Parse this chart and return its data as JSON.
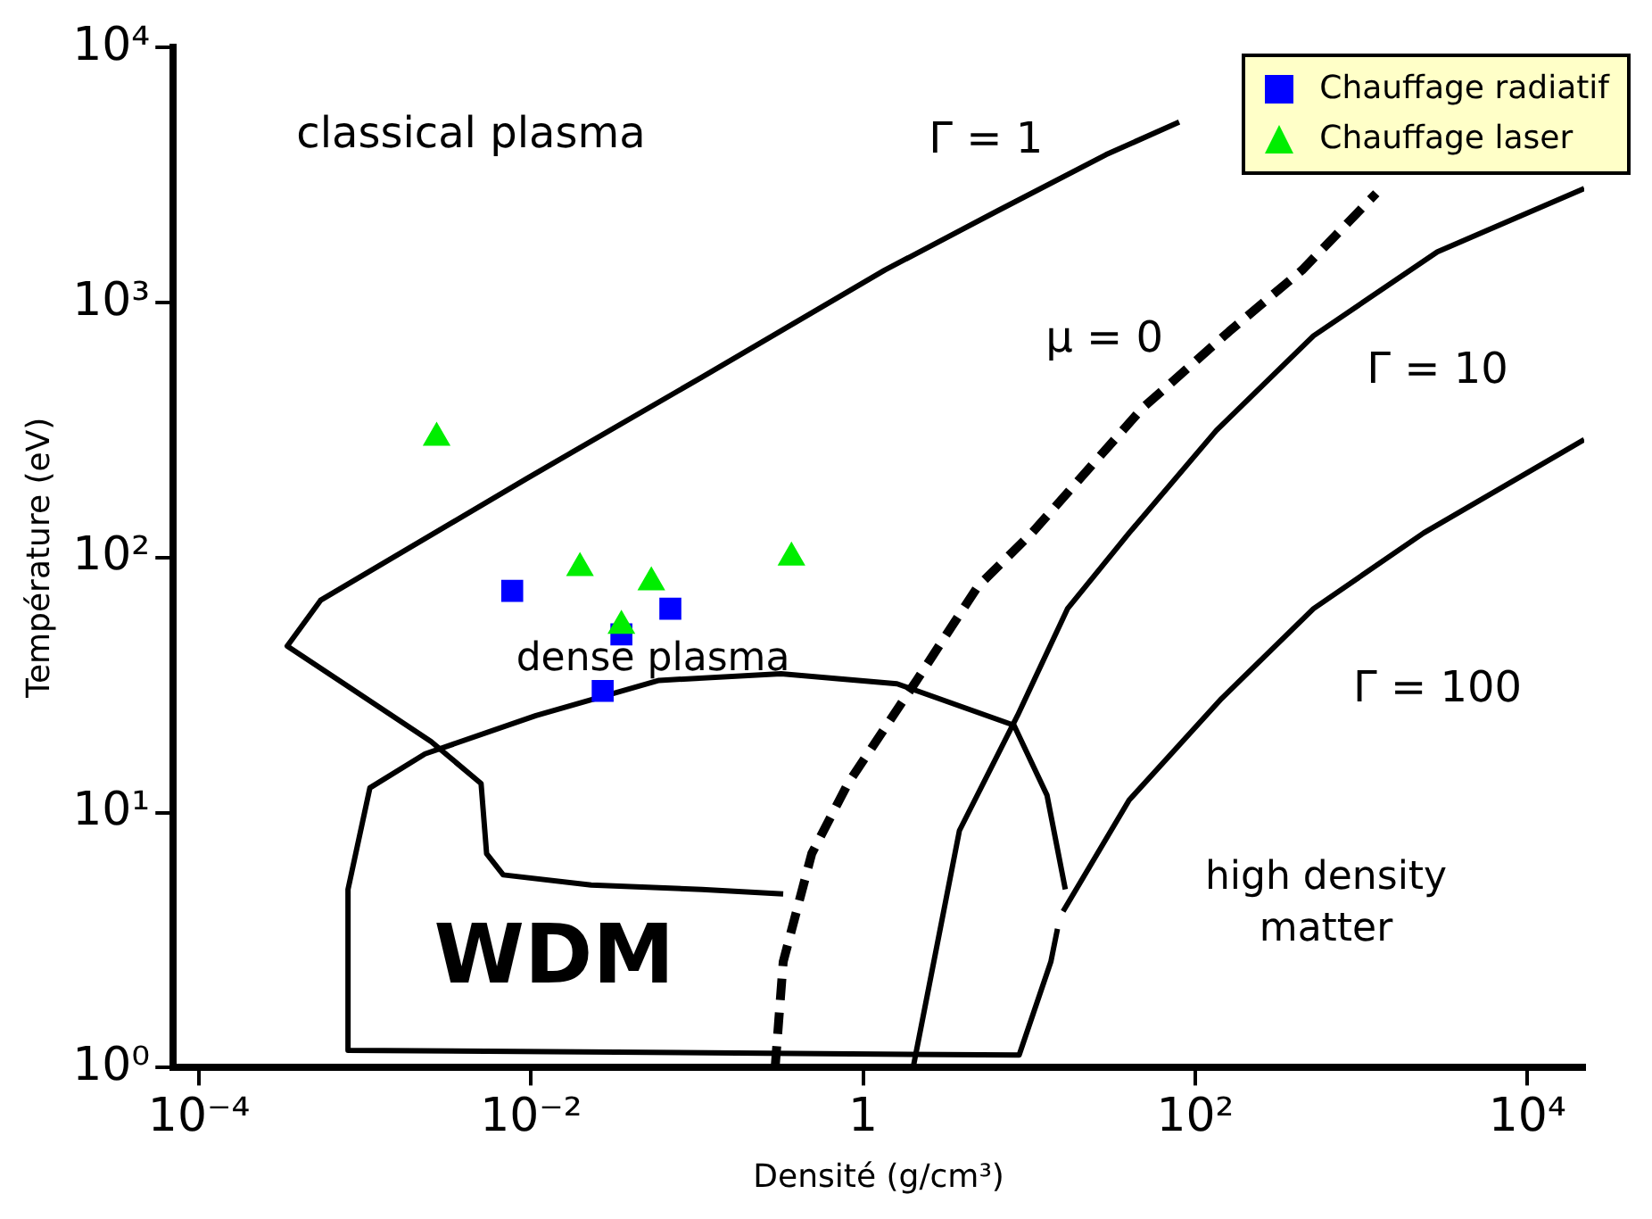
{
  "chart_data": {
    "type": "scatter",
    "xlabel": "Densité (g/cm³)",
    "ylabel": "Température (eV)",
    "log": "xy",
    "grid": false,
    "legend": "top right",
    "xlim": [
      7e-05,
      22000
    ],
    "ylim": [
      1,
      10000
    ],
    "xticks": [
      {
        "value": 0.0001,
        "label": "10⁻⁴"
      },
      {
        "value": 0.01,
        "label": "10⁻²"
      },
      1,
      {
        "value": 100,
        "label": "10²"
      },
      {
        "value": 10000,
        "label": "10⁴"
      }
    ],
    "yticks": [
      {
        "value": 1,
        "label": "10⁰"
      },
      {
        "value": 10,
        "label": "10¹"
      },
      {
        "value": 100,
        "label": "10²"
      },
      {
        "value": 1000,
        "label": "10³"
      },
      {
        "value": 10000,
        "label": "10⁴"
      }
    ],
    "series": [
      {
        "type": "line",
        "color": "#000000",
        "marker": "none",
        "line_style": "solid",
        "x": [
          0.33,
          0.107,
          0.023,
          0.0068,
          0.0054,
          0.005,
          0.0025,
          0.00034,
          0.00054,
          0.0094,
          0.107,
          1.35,
          6.3,
          29,
          80
        ],
        "values": [
          4.8,
          5.0,
          5.2,
          5.7,
          6.9,
          13,
          19,
          45,
          68,
          204,
          510,
          1340,
          2270,
          3800,
          5100
        ]
      },
      {
        "type": "line",
        "color": "#000000",
        "marker": "none",
        "line_style": "dashed",
        "x": [
          0.295,
          0.33,
          0.49,
          0.81,
          2.1,
          4.9,
          10.4,
          48,
          160,
          440,
          1230
        ],
        "values": [
          1,
          2.6,
          6.9,
          13,
          33,
          77,
          125,
          385,
          770,
          1340,
          2680
        ]
      },
      {
        "type": "line",
        "color": "#000000",
        "marker": "none",
        "line_style": "solid",
        "x": [
          2.0,
          3.8,
          8.5,
          17,
          40,
          134,
          515,
          2870,
          22000
        ],
        "values": [
          1,
          8.5,
          24,
          63,
          125,
          315,
          740,
          1580,
          2800
        ]
      },
      {
        "type": "line",
        "color": "#000000",
        "marker": "none",
        "line_style": "solid",
        "x": [
          16,
          40,
          144,
          515,
          2380,
          22000
        ],
        "values": [
          4.1,
          11.2,
          28,
          63,
          125,
          290
        ]
      },
      {
        "type": "line",
        "color": "#000000",
        "marker": "none",
        "line_style": "solid",
        "x": [
          14.8,
          13.5,
          8.7,
          0.00079,
          0.00079,
          0.00107,
          0.0023,
          0.0107,
          0.059,
          0.32,
          1.6,
          8.1,
          12.8,
          16.5
        ],
        "values": [
          3.5,
          2.6,
          1.12,
          1.17,
          5.0,
          12.5,
          17,
          24,
          33,
          35,
          32,
          22,
          11.7,
          5.0
        ]
      },
      {
        "name": "Chauffage radiatif",
        "color": "#0000ff",
        "marker": "square",
        "x": [
          0.0077,
          0.027,
          0.035,
          0.069
        ],
        "values": [
          74,
          30,
          50,
          63
        ]
      },
      {
        "name": "Chauffage laser",
        "color": "#00ee00",
        "marker": "triangle",
        "x": [
          0.0027,
          0.0197,
          0.035,
          0.053,
          0.37
        ],
        "values": [
          295,
          91,
          54,
          80,
          100
        ]
      }
    ],
    "annotations": [
      "classical plasma",
      "dense plasma",
      "WDM",
      "high density matter",
      "Γ = 1",
      "μ = 0",
      "Γ = 10",
      "Γ = 100"
    ]
  }
}
